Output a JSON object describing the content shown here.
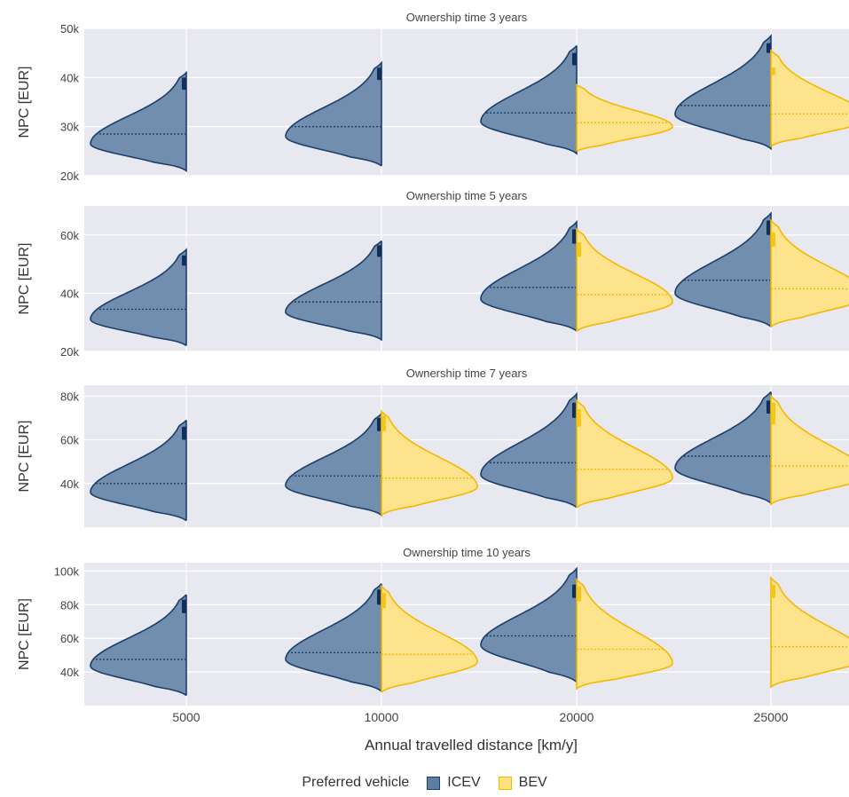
{
  "chart_data": {
    "type": "violin",
    "xlabel": "Annual travelled distance [km/y]",
    "ylabel": "NPC [EUR]",
    "categories": [
      "5000",
      "10000",
      "20000",
      "25000"
    ],
    "legend": {
      "title": "Preferred vehicle",
      "position": "bottom",
      "entries": [
        {
          "name": "ICEV",
          "color": "#1f4e79"
        },
        {
          "name": "BEV",
          "color": "#f5c518"
        }
      ]
    },
    "colors": {
      "ICEV": "#2e5b8a",
      "ICEV_edge": "#1a3f6b",
      "BEV": "#ffd966",
      "BEV_edge": "#f5b800",
      "panel_bg": "#e8e8f0",
      "grid": "#ffffff"
    },
    "panels": [
      {
        "title": "Ownership time 3 years",
        "ylim": [
          20000,
          50000
        ],
        "yticks": [
          20000,
          30000,
          40000,
          50000
        ],
        "ytick_labels": [
          "20k",
          "30k",
          "40k",
          "50k"
        ],
        "groups": [
          {
            "category": "5000",
            "ICEV": {
              "min": 21000,
              "max": 41000,
              "mode": 26500,
              "mean": 28500,
              "box": [
                37500,
                40000
              ]
            },
            "BEV": null
          },
          {
            "category": "10000",
            "ICEV": {
              "min": 22000,
              "max": 43000,
              "mode": 28000,
              "mean": 30000,
              "box": [
                39500,
                42000
              ]
            },
            "BEV": null
          },
          {
            "category": "20000",
            "ICEV": {
              "min": 24500,
              "max": 46500,
              "mode": 31000,
              "mean": 32800,
              "box": [
                42500,
                45000
              ]
            },
            "BEV": {
              "min": 25000,
              "max": 38500,
              "mode": 30000,
              "mean": 30800,
              "box": null
            }
          },
          {
            "category": "25000",
            "ICEV": {
              "min": 25500,
              "max": 48500,
              "mode": 32500,
              "mean": 34300,
              "box": [
                45000,
                47000
              ]
            },
            "BEV": {
              "min": 26000,
              "max": 45500,
              "mode": 31500,
              "mean": 32600,
              "box": [
                40500,
                42000
              ]
            }
          }
        ]
      },
      {
        "title": "Ownership time 5 years",
        "ylim": [
          20000,
          70000
        ],
        "yticks": [
          20000,
          40000,
          60000
        ],
        "ytick_labels": [
          "20k",
          "40k",
          "60k"
        ],
        "groups": [
          {
            "category": "5000",
            "ICEV": {
              "min": 22000,
              "max": 55000,
              "mode": 31000,
              "mean": 34500,
              "box": [
                49500,
                53000
              ]
            },
            "BEV": null
          },
          {
            "category": "10000",
            "ICEV": {
              "min": 24000,
              "max": 58000,
              "mode": 33500,
              "mean": 37000,
              "box": [
                52500,
                56500
              ]
            },
            "BEV": null
          },
          {
            "category": "20000",
            "ICEV": {
              "min": 27000,
              "max": 64500,
              "mode": 38000,
              "mean": 42000,
              "box": [
                57000,
                62000
              ]
            },
            "BEV": {
              "min": 27000,
              "max": 62000,
              "mode": 37000,
              "mean": 39500,
              "box": [
                52500,
                57500
              ]
            }
          },
          {
            "category": "25000",
            "ICEV": {
              "min": 28500,
              "max": 67500,
              "mode": 40000,
              "mean": 44500,
              "box": [
                60000,
                65000
              ]
            },
            "BEV": {
              "min": 28500,
              "max": 65000,
              "mode": 39000,
              "mean": 41500,
              "box": [
                56000,
                61000
              ]
            }
          }
        ]
      },
      {
        "title": "Ownership time 7 years",
        "ylim": [
          20000,
          85000
        ],
        "yticks": [
          40000,
          60000,
          80000
        ],
        "ytick_labels": [
          "40k",
          "60k",
          "80k"
        ],
        "groups": [
          {
            "category": "5000",
            "ICEV": {
              "min": 23000,
              "max": 69000,
              "mode": 36000,
              "mean": 40000,
              "box": [
                60000,
                66000
              ]
            },
            "BEV": null
          },
          {
            "category": "10000",
            "ICEV": {
              "min": 25500,
              "max": 72000,
              "mode": 39000,
              "mean": 43500,
              "box": [
                64000,
                70000
              ]
            },
            "BEV": {
              "min": 25500,
              "max": 73000,
              "mode": 38500,
              "mean": 42500,
              "box": [
                64000,
                71000
              ]
            }
          },
          {
            "category": "20000",
            "ICEV": {
              "min": 29000,
              "max": 81000,
              "mode": 44000,
              "mean": 49500,
              "box": [
                70000,
                77000
              ]
            },
            "BEV": {
              "min": 29000,
              "max": 78000,
              "mode": 42500,
              "mean": 46500,
              "box": [
                66000,
                74000
              ]
            }
          },
          {
            "category": "25000",
            "ICEV": {
              "min": 31000,
              "max": 82000,
              "mode": 47000,
              "mean": 52500,
              "box": [
                72000,
                78000
              ]
            },
            "BEV": {
              "min": 30500,
              "max": 80000,
              "mode": 43500,
              "mean": 48000,
              "box": [
                67000,
                77000
              ]
            }
          }
        ]
      },
      {
        "title": "Ownership time 10 years",
        "ylim": [
          20000,
          105000
        ],
        "yticks": [
          40000,
          60000,
          80000,
          100000
        ],
        "ytick_labels": [
          "40k",
          "60k",
          "80k",
          "100k"
        ],
        "groups": [
          {
            "category": "5000",
            "ICEV": {
              "min": 26000,
              "max": 86000,
              "mode": 43500,
              "mean": 47500,
              "box": [
                75000,
                83000
              ]
            },
            "BEV": null
          },
          {
            "category": "10000",
            "ICEV": {
              "min": 28500,
              "max": 92500,
              "mode": 47500,
              "mean": 51500,
              "box": [
                80000,
                89000
              ]
            },
            "BEV": {
              "min": 28000,
              "max": 91000,
              "mode": 46000,
              "mean": 50500,
              "box": [
                78000,
                87000
              ]
            }
          },
          {
            "category": "20000",
            "ICEV": {
              "min": 34000,
              "max": 101500,
              "mode": 56000,
              "mean": 61500,
              "box": [
                84000,
                92000
              ]
            },
            "BEV": {
              "min": 30000,
              "max": 95000,
              "mode": 45000,
              "mean": 53500,
              "box": [
                82000,
                91000
              ]
            }
          },
          {
            "category": "25000",
            "ICEV": null,
            "BEV": {
              "min": 31000,
              "max": 96000,
              "mode": 48500,
              "mean": 55000,
              "box": [
                84000,
                92000
              ]
            }
          }
        ]
      }
    ]
  }
}
